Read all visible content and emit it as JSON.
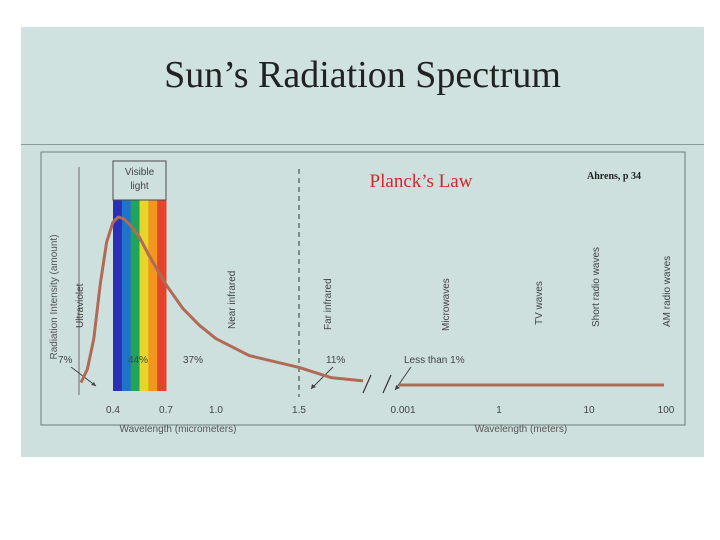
{
  "slide": {
    "title": "Sun’s Radiation Spectrum",
    "source_note": "Ahrens, p 34",
    "law_label": "Planck’s Law"
  },
  "colors": {
    "background": "#cfe2df",
    "curve": "#b06a55",
    "law_label": "#cc2a2a",
    "spectrum_band": [
      "#2b2fb8",
      "#1f73c8",
      "#21a35b",
      "#e7d52a",
      "#f3961f",
      "#e3452c"
    ]
  },
  "chart_data": {
    "type": "line",
    "title": "Planck’s Law",
    "ylabel": "Radiation Intensity (amount)",
    "x_left": {
      "label": "Wavelength (micrometers)",
      "ticks": [
        "0.4",
        "0.7",
        "1.0",
        "1.5"
      ],
      "tick_values": [
        0.4,
        0.7,
        1.0,
        1.5
      ]
    },
    "x_right": {
      "label": "Wavelength (meters)",
      "ticks": [
        "0.001",
        "1",
        "10",
        "100"
      ],
      "scale": "log"
    },
    "visible_band": {
      "label_line1": "Visible",
      "label_line2": "light",
      "from": 0.4,
      "to": 0.7
    },
    "regions": [
      "Ultraviolet",
      "Near infrared",
      "Far infrared",
      "Microwaves",
      "TV waves",
      "Short radio waves",
      "AM radio waves"
    ],
    "percentages": [
      "7%",
      "44%",
      "37%",
      "11%",
      "Less than 1%"
    ],
    "curve": {
      "x": [
        0.15,
        0.2,
        0.25,
        0.3,
        0.35,
        0.4,
        0.43,
        0.46,
        0.5,
        0.55,
        0.6,
        0.7,
        0.8,
        0.9,
        1.0,
        1.2,
        1.5,
        2.0,
        2.5
      ],
      "y": [
        2,
        10,
        28,
        60,
        85,
        97,
        100,
        99,
        95,
        88,
        78,
        60,
        46,
        36,
        28,
        18,
        11,
        5,
        3
      ]
    },
    "divider_at": 1.5
  }
}
